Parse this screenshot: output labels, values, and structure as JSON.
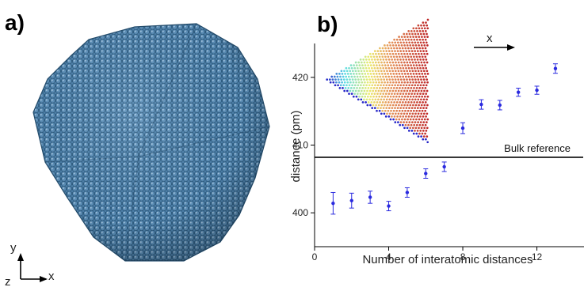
{
  "panels": {
    "a": {
      "label": "a)",
      "axes": {
        "y": "y",
        "x": "x",
        "z": "z"
      }
    },
    "b": {
      "label": "b)",
      "inset_arrow_label": "x"
    }
  },
  "chart_data": {
    "type": "scatter",
    "title": "",
    "xlabel": "Number of interatomic distances",
    "ylabel": "distance (pm)",
    "xlim": [
      0,
      14.5
    ],
    "ylim": [
      395,
      425
    ],
    "xticks": [
      0,
      4,
      8,
      12
    ],
    "yticks": [
      400,
      410,
      420
    ],
    "grid": false,
    "marker_color": "#2a2adf",
    "reference_line": {
      "label": "Bulk reference",
      "y": 408.2
    },
    "series": [
      {
        "x": [
          1,
          2,
          3,
          4,
          5,
          6,
          7,
          8,
          9,
          10,
          11,
          12,
          13
        ],
        "y": [
          401.4,
          401.8,
          402.3,
          401.0,
          403.0,
          405.8,
          406.8,
          412.5,
          416.0,
          415.9,
          417.8,
          418.1,
          421.3
        ],
        "yerr": [
          1.6,
          1.1,
          0.9,
          0.7,
          0.7,
          0.7,
          0.7,
          0.8,
          0.7,
          0.7,
          0.6,
          0.6,
          0.7
        ]
      }
    ]
  }
}
